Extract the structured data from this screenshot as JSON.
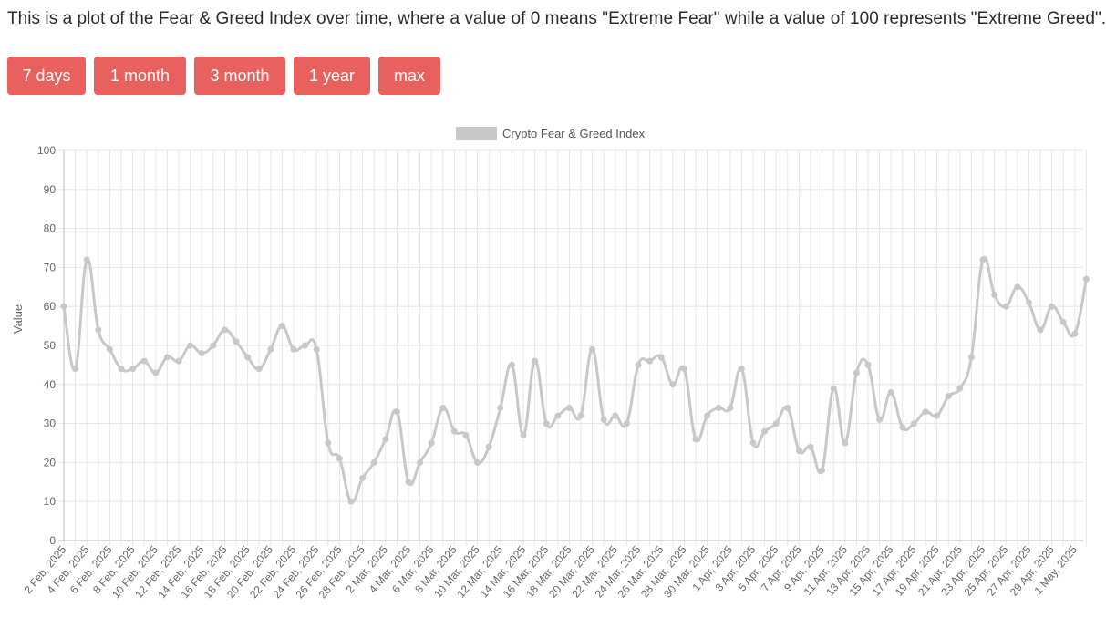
{
  "description": "This is a plot of the Fear & Greed Index over time, where a value of 0 means \"Extreme Fear\" while a value of 100 represents \"Extreme Greed\".",
  "range_buttons": [
    {
      "label": "7 days"
    },
    {
      "label": "1 month"
    },
    {
      "label": "3 month"
    },
    {
      "label": "1 year"
    },
    {
      "label": "max"
    }
  ],
  "colors": {
    "button": "#e8615f",
    "line": "#c8c8c8",
    "grid": "#e6e6e6"
  },
  "chart_data": {
    "type": "line",
    "title": "",
    "xlabel": "",
    "ylabel": "Value",
    "ylim": [
      0,
      100
    ],
    "yticks": [
      0,
      10,
      20,
      30,
      40,
      50,
      60,
      70,
      80,
      90,
      100
    ],
    "grid": true,
    "legend_position": "top",
    "x_tick_labels": [
      "2 Feb, 2025",
      "4 Feb, 2025",
      "6 Feb, 2025",
      "8 Feb, 2025",
      "10 Feb, 2025",
      "12 Feb, 2025",
      "14 Feb, 2025",
      "16 Feb, 2025",
      "18 Feb, 2025",
      "20 Feb, 2025",
      "22 Feb, 2025",
      "24 Feb, 2025",
      "26 Feb, 2025",
      "28 Feb, 2025",
      "2 Mar, 2025",
      "4 Mar, 2025",
      "6 Mar, 2025",
      "8 Mar, 2025",
      "10 Mar, 2025",
      "12 Mar, 2025",
      "14 Mar, 2025",
      "16 Mar, 2025",
      "18 Mar, 2025",
      "20 Mar, 2025",
      "22 Mar, 2025",
      "24 Mar, 2025",
      "26 Mar, 2025",
      "28 Mar, 2025",
      "30 Mar, 2025",
      "1 Apr, 2025",
      "3 Apr, 2025",
      "5 Apr, 2025",
      "7 Apr, 2025",
      "9 Apr, 2025",
      "11 Apr, 2025",
      "13 Apr, 2025",
      "15 Apr, 2025",
      "17 Apr, 2025",
      "19 Apr, 2025",
      "21 Apr, 2025",
      "23 Apr, 2025",
      "25 Apr, 2025",
      "27 Apr, 2025",
      "29 Apr, 2025",
      "1 May, 2025"
    ],
    "series": [
      {
        "name": "Crypto Fear & Greed Index",
        "x": [
          "2 Feb, 2025",
          "3 Feb, 2025",
          "4 Feb, 2025",
          "5 Feb, 2025",
          "6 Feb, 2025",
          "7 Feb, 2025",
          "8 Feb, 2025",
          "9 Feb, 2025",
          "10 Feb, 2025",
          "11 Feb, 2025",
          "12 Feb, 2025",
          "13 Feb, 2025",
          "14 Feb, 2025",
          "15 Feb, 2025",
          "16 Feb, 2025",
          "17 Feb, 2025",
          "18 Feb, 2025",
          "19 Feb, 2025",
          "20 Feb, 2025",
          "21 Feb, 2025",
          "22 Feb, 2025",
          "23 Feb, 2025",
          "24 Feb, 2025",
          "25 Feb, 2025",
          "26 Feb, 2025",
          "27 Feb, 2025",
          "28 Feb, 2025",
          "1 Mar, 2025",
          "2 Mar, 2025",
          "3 Mar, 2025",
          "4 Mar, 2025",
          "5 Mar, 2025",
          "6 Mar, 2025",
          "7 Mar, 2025",
          "8 Mar, 2025",
          "9 Mar, 2025",
          "10 Mar, 2025",
          "11 Mar, 2025",
          "12 Mar, 2025",
          "13 Mar, 2025",
          "14 Mar, 2025",
          "15 Mar, 2025",
          "16 Mar, 2025",
          "17 Mar, 2025",
          "18 Mar, 2025",
          "19 Mar, 2025",
          "20 Mar, 2025",
          "21 Mar, 2025",
          "22 Mar, 2025",
          "23 Mar, 2025",
          "24 Mar, 2025",
          "25 Mar, 2025",
          "26 Mar, 2025",
          "27 Mar, 2025",
          "28 Mar, 2025",
          "29 Mar, 2025",
          "30 Mar, 2025",
          "31 Mar, 2025",
          "1 Apr, 2025",
          "2 Apr, 2025",
          "3 Apr, 2025",
          "4 Apr, 2025",
          "5 Apr, 2025",
          "6 Apr, 2025",
          "7 Apr, 2025",
          "8 Apr, 2025",
          "9 Apr, 2025",
          "10 Apr, 2025",
          "11 Apr, 2025",
          "12 Apr, 2025",
          "13 Apr, 2025",
          "14 Apr, 2025",
          "15 Apr, 2025",
          "16 Apr, 2025",
          "17 Apr, 2025",
          "18 Apr, 2025",
          "19 Apr, 2025",
          "20 Apr, 2025",
          "21 Apr, 2025",
          "22 Apr, 2025",
          "23 Apr, 2025",
          "24 Apr, 2025",
          "25 Apr, 2025",
          "26 Apr, 2025",
          "27 Apr, 2025",
          "28 Apr, 2025",
          "29 Apr, 2025",
          "30 Apr, 2025",
          "1 May, 2025",
          "2 May, 2025"
        ],
        "values": [
          60,
          44,
          72,
          54,
          49,
          44,
          44,
          46,
          43,
          47,
          46,
          50,
          48,
          50,
          54,
          51,
          47,
          44,
          49,
          55,
          49,
          50,
          49,
          25,
          21,
          10,
          16,
          20,
          26,
          33,
          15,
          20,
          25,
          34,
          28,
          27,
          20,
          24,
          34,
          45,
          27,
          46,
          30,
          32,
          34,
          32,
          49,
          31,
          32,
          30,
          45,
          46,
          47,
          40,
          44,
          26,
          32,
          34,
          34,
          44,
          25,
          28,
          30,
          34,
          23,
          24,
          18,
          39,
          25,
          43,
          45,
          31,
          38,
          29,
          30,
          33,
          32,
          37,
          39,
          47,
          72,
          63,
          60,
          65,
          61,
          54,
          60,
          56,
          53,
          67
        ]
      }
    ]
  }
}
